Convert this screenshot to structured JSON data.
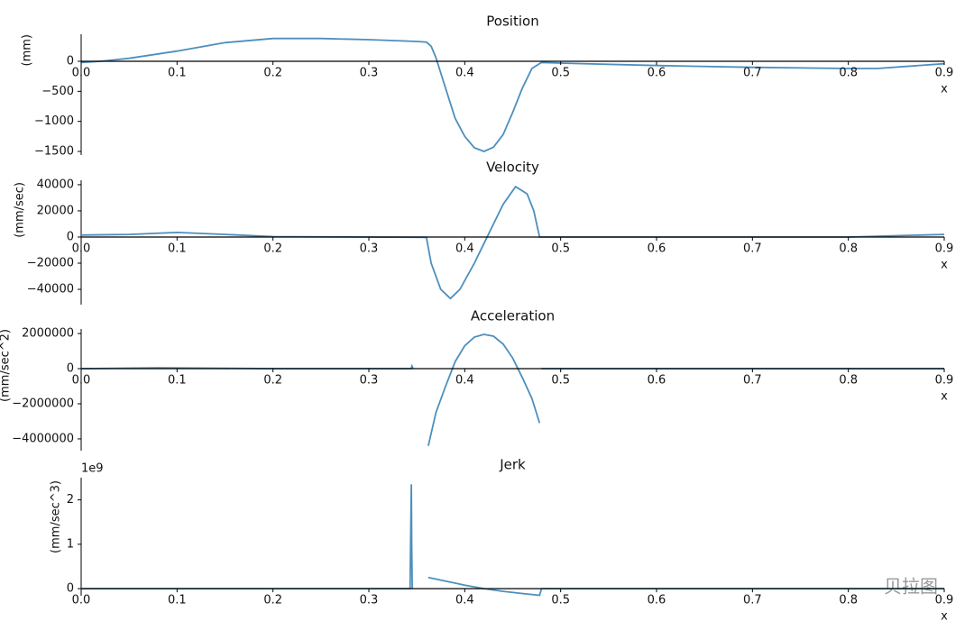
{
  "chart_data": [
    {
      "type": "line",
      "title": "Position",
      "y_label": "(mm)",
      "x_label": "x",
      "x": [
        0,
        0.02,
        0.05,
        0.1,
        0.15,
        0.2,
        0.25,
        0.3,
        0.35,
        0.36,
        0.365,
        0.37,
        0.38,
        0.39,
        0.4,
        0.41,
        0.42,
        0.43,
        0.44,
        0.45,
        0.46,
        0.47,
        0.48,
        0.5,
        0.6,
        0.7,
        0.8,
        0.83,
        0.9
      ],
      "series": [
        {
          "name": "Position",
          "color": "#4c8fbd",
          "values": [
            -20,
            0,
            50,
            170,
            310,
            380,
            380,
            360,
            330,
            320,
            250,
            60,
            -450,
            -950,
            -1250,
            -1440,
            -1500,
            -1430,
            -1220,
            -850,
            -450,
            -120,
            -20,
            -30,
            -70,
            -100,
            -120,
            -120,
            -40
          ]
        }
      ],
      "xlim": [
        0,
        0.9
      ],
      "xticks": [
        {
          "value": 0,
          "label": "0.0"
        },
        0.1,
        0.2,
        0.3,
        0.4,
        0.5,
        0.6,
        0.7,
        0.8,
        0.9
      ],
      "ylim": [
        -1560,
        450
      ],
      "yticks": [
        0,
        {
          "value": -500,
          "label": "−500"
        },
        {
          "value": -1000,
          "label": "−1000"
        },
        {
          "value": -1500,
          "label": "−1500"
        }
      ]
    },
    {
      "type": "line",
      "title": "Velocity",
      "y_label": "(mm/sec)",
      "x_label": "x",
      "x": [
        0,
        0.05,
        0.1,
        0.15,
        0.2,
        0.3,
        0.36,
        0.365,
        0.375,
        0.385,
        0.395,
        0.41,
        0.42,
        0.43,
        0.44,
        0.453,
        0.465,
        0.472,
        0.478,
        0.5,
        0.6,
        0.7,
        0.8,
        0.85,
        0.9
      ],
      "series": [
        {
          "name": "Velocity",
          "color": "#4c8fbd",
          "values": [
            1500,
            2000,
            3500,
            2000,
            300,
            0,
            -200,
            -20000,
            -40000,
            -47000,
            -40000,
            -20000,
            -5000,
            10000,
            25000,
            38500,
            33000,
            20000,
            0,
            0,
            0,
            0,
            0,
            1000,
            2000
          ]
        }
      ],
      "xlim": [
        0,
        0.9
      ],
      "xticks": [
        {
          "value": 0,
          "label": "0.0"
        },
        0.1,
        0.2,
        0.3,
        0.4,
        0.5,
        0.6,
        0.7,
        0.8,
        0.9
      ],
      "ylim": [
        -51700,
        43400
      ],
      "yticks": [
        40000,
        20000,
        0,
        {
          "value": -20000,
          "label": "−20000"
        },
        {
          "value": -40000,
          "label": "−40000"
        }
      ]
    },
    {
      "type": "line",
      "title": "Acceleration",
      "y_label": "(mm/sec^2)",
      "x_label": "x",
      "x": [
        0,
        0.08,
        0.2,
        0.344,
        0.345,
        0.346,
        0.35,
        0.362,
        0.37,
        0.38,
        0.39,
        0.4,
        0.41,
        0.42,
        0.43,
        0.44,
        0.45,
        0.46,
        0.47,
        0.478,
        0.479,
        0.48,
        0.9
      ],
      "series": [
        {
          "name": "Acceleration",
          "color": "#4c8fbd",
          "values": [
            0,
            50000,
            0,
            0,
            150000,
            0,
            null,
            -4400000,
            -2500000,
            -1000000,
            400000,
            1300000,
            1800000,
            1950000,
            1850000,
            1400000,
            600000,
            -500000,
            -1700000,
            -3100000,
            null,
            0,
            0
          ]
        }
      ],
      "xlim": [
        0,
        0.9
      ],
      "xticks": [
        {
          "value": 0,
          "label": "0.0"
        },
        0.1,
        0.2,
        0.3,
        0.4,
        0.5,
        0.6,
        0.7,
        0.8,
        0.9
      ],
      "ylim": [
        -4670000,
        2260000
      ],
      "yticks": [
        2000000,
        0,
        {
          "value": -2000000,
          "label": "−2000000"
        },
        {
          "value": -4000000,
          "label": "−4000000"
        }
      ]
    },
    {
      "type": "line",
      "title": "Jerk",
      "y_label": "(mm/sec^3)",
      "x_label": "x",
      "offset_text": "1e9",
      "x": [
        0,
        0.343,
        0.3443,
        0.3447,
        0.3452,
        0.35,
        0.362,
        0.38,
        0.4,
        0.42,
        0.44,
        0.46,
        0.478,
        0.48,
        0.9
      ],
      "series": [
        {
          "name": "Jerk",
          "color": "#4c8fbd",
          "values": [
            0,
            0,
            2.35,
            1.0,
            0,
            null,
            0.25,
            0.17,
            0.08,
            0,
            -0.06,
            -0.11,
            -0.15,
            0,
            0
          ]
        }
      ],
      "xlim": [
        0,
        0.9
      ],
      "xticks": [
        {
          "value": 0,
          "label": "0.0"
        },
        0.1,
        0.2,
        0.3,
        0.4,
        0.5,
        0.6,
        0.7,
        0.8,
        0.9
      ],
      "ylim": [
        -0.16,
        2.5
      ],
      "yticks": [
        0,
        1,
        2
      ]
    }
  ],
  "watermark": "贝拉图"
}
